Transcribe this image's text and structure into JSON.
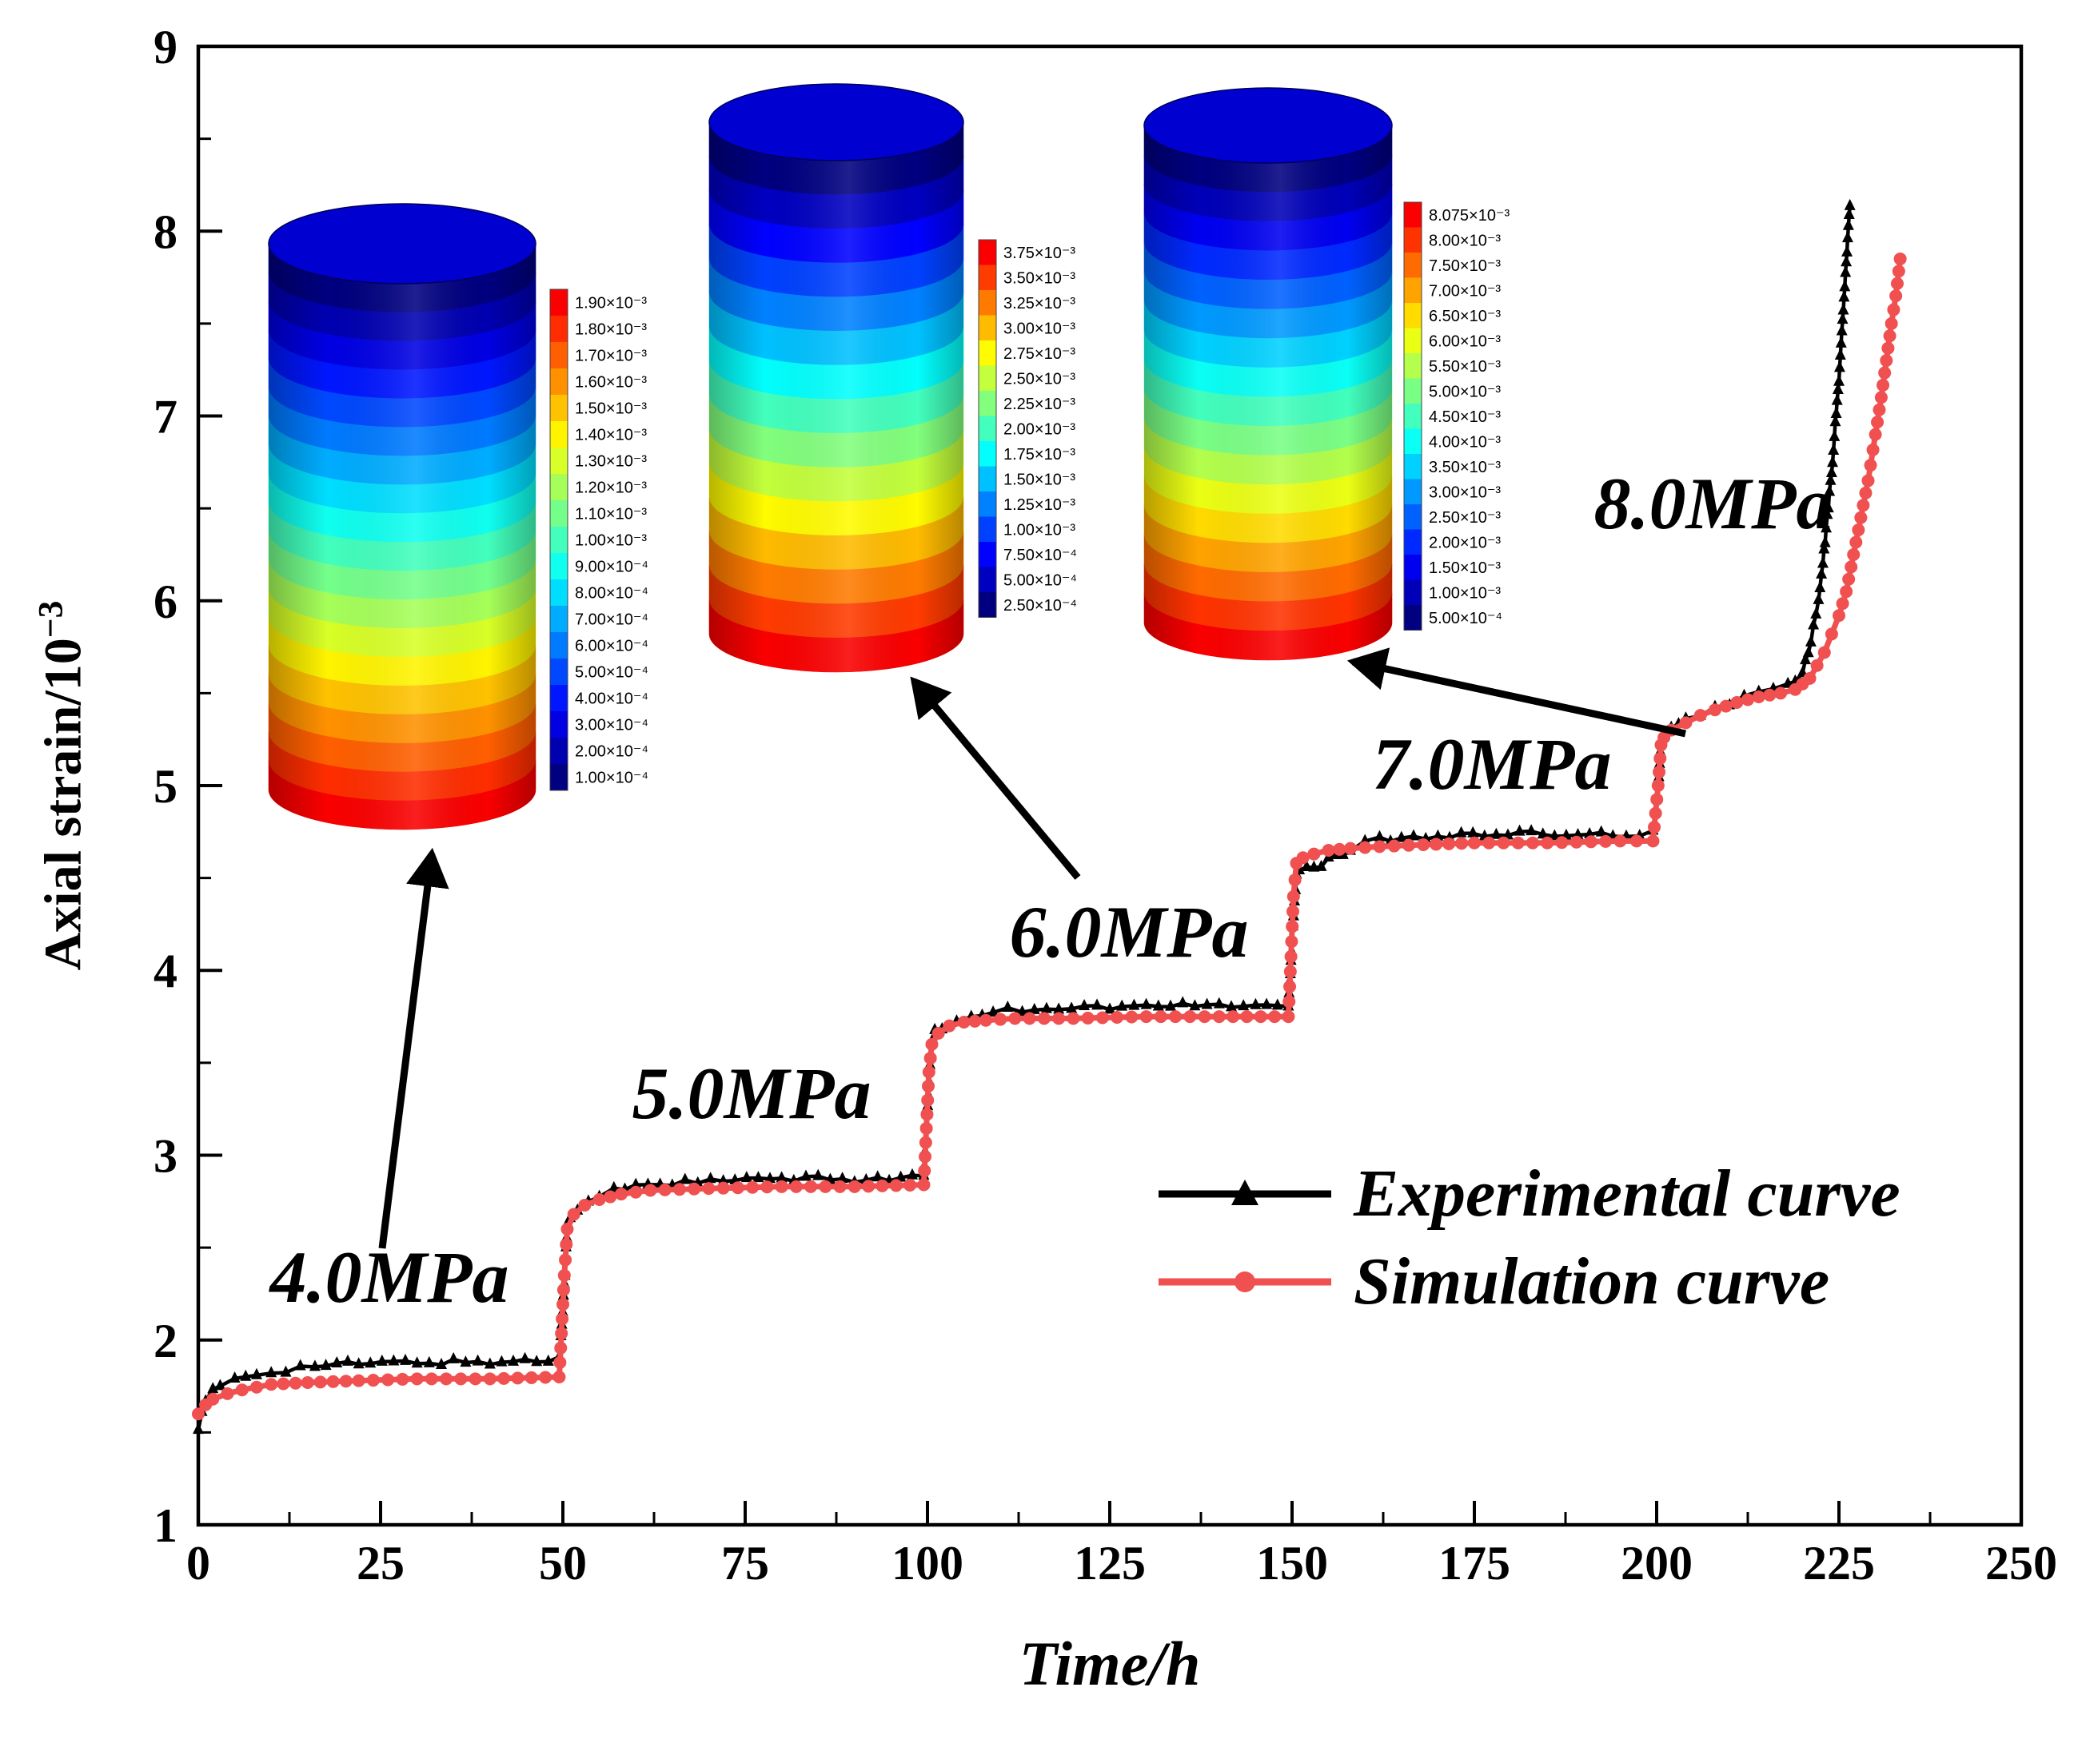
{
  "figure": {
    "background": "#ffffff",
    "frame_color": "#000000"
  },
  "chart_data": {
    "type": "line",
    "title": "",
    "xlabel": "Time/h",
    "ylabel": "Axial strain/10⁻³",
    "ylabel_base": "Axial strain/10",
    "ylabel_sup": "−3",
    "xlim": [
      0,
      250
    ],
    "ylim": [
      1,
      9
    ],
    "xticks": [
      0,
      25,
      50,
      75,
      100,
      125,
      150,
      175,
      200,
      225,
      250
    ],
    "yticks": [
      1,
      2,
      3,
      4,
      5,
      6,
      7,
      8,
      9
    ],
    "grid": false,
    "legend_position": "inside lower right",
    "series": [
      {
        "name": "Experimental curve",
        "color": "#000000",
        "marker": "triangle",
        "points": [
          [
            0,
            1.52
          ],
          [
            0.5,
            1.6
          ],
          [
            1,
            1.66
          ],
          [
            2,
            1.72
          ],
          [
            3,
            1.75
          ],
          [
            5,
            1.79
          ],
          [
            8,
            1.82
          ],
          [
            12,
            1.84
          ],
          [
            16,
            1.86
          ],
          [
            22,
            1.87
          ],
          [
            30,
            1.88
          ],
          [
            40,
            1.88
          ],
          [
            48,
            1.89
          ],
          [
            49.5,
            1.9
          ],
          [
            50.2,
            2.3
          ],
          [
            50.6,
            2.62
          ],
          [
            51,
            2.66
          ],
          [
            52,
            2.7
          ],
          [
            53.5,
            2.74
          ],
          [
            55,
            2.78
          ],
          [
            57,
            2.81
          ],
          [
            60,
            2.84
          ],
          [
            65,
            2.85
          ],
          [
            72,
            2.86
          ],
          [
            80,
            2.87
          ],
          [
            90,
            2.87
          ],
          [
            99.5,
            2.88
          ],
          [
            100.2,
            3.4
          ],
          [
            100.6,
            3.62
          ],
          [
            101,
            3.66
          ],
          [
            102,
            3.69
          ],
          [
            104,
            3.72
          ],
          [
            106,
            3.75
          ],
          [
            109,
            3.78
          ],
          [
            113,
            3.79
          ],
          [
            118,
            3.8
          ],
          [
            125,
            3.8
          ],
          [
            135,
            3.81
          ],
          [
            145,
            3.81
          ],
          [
            149.5,
            3.81
          ],
          [
            150.2,
            4.3
          ],
          [
            150.6,
            4.52
          ],
          [
            151,
            4.55
          ],
          [
            152,
            4.56
          ],
          [
            153,
            4.55
          ],
          [
            154,
            4.57
          ],
          [
            155,
            4.6
          ],
          [
            156,
            4.63
          ],
          [
            157,
            4.61
          ],
          [
            158,
            4.65
          ],
          [
            160,
            4.69
          ],
          [
            162,
            4.71
          ],
          [
            165,
            4.72
          ],
          [
            170,
            4.73
          ],
          [
            178,
            4.73
          ],
          [
            186,
            4.74
          ],
          [
            194,
            4.74
          ],
          [
            199.5,
            4.74
          ],
          [
            200.2,
            5.0
          ],
          [
            200.5,
            5.18
          ],
          [
            201,
            5.26
          ],
          [
            202,
            5.3
          ],
          [
            203,
            5.32
          ],
          [
            204,
            5.35
          ],
          [
            206,
            5.39
          ],
          [
            208,
            5.42
          ],
          [
            210,
            5.45
          ],
          [
            212,
            5.48
          ],
          [
            214,
            5.5
          ],
          [
            216,
            5.52
          ],
          [
            218,
            5.54
          ],
          [
            219,
            5.56
          ],
          [
            220,
            5.62
          ],
          [
            220.8,
            5.72
          ],
          [
            221.5,
            5.85
          ],
          [
            222.2,
            6.0
          ],
          [
            222.8,
            6.2
          ],
          [
            223.4,
            6.45
          ],
          [
            224,
            6.7
          ],
          [
            224.5,
            6.95
          ],
          [
            225,
            7.2
          ],
          [
            225.4,
            7.45
          ],
          [
            225.8,
            7.7
          ],
          [
            226.2,
            7.95
          ],
          [
            226.5,
            8.15
          ]
        ]
      },
      {
        "name": "Simulation curve",
        "color": "#f05050",
        "marker": "circle",
        "points": [
          [
            0,
            1.6
          ],
          [
            1,
            1.65
          ],
          [
            2,
            1.68
          ],
          [
            4,
            1.71
          ],
          [
            6,
            1.73
          ],
          [
            10,
            1.76
          ],
          [
            15,
            1.77
          ],
          [
            22,
            1.78
          ],
          [
            30,
            1.79
          ],
          [
            40,
            1.79
          ],
          [
            49.5,
            1.8
          ],
          [
            50.2,
            2.35
          ],
          [
            50.6,
            2.6
          ],
          [
            51.5,
            2.68
          ],
          [
            53,
            2.73
          ],
          [
            55,
            2.76
          ],
          [
            58,
            2.79
          ],
          [
            62,
            2.81
          ],
          [
            70,
            2.82
          ],
          [
            80,
            2.83
          ],
          [
            90,
            2.83
          ],
          [
            99.5,
            2.84
          ],
          [
            100.2,
            3.45
          ],
          [
            100.6,
            3.6
          ],
          [
            101.5,
            3.66
          ],
          [
            103,
            3.7
          ],
          [
            105,
            3.72
          ],
          [
            108,
            3.73
          ],
          [
            112,
            3.74
          ],
          [
            120,
            3.74
          ],
          [
            130,
            3.75
          ],
          [
            140,
            3.75
          ],
          [
            149.5,
            3.75
          ],
          [
            150.2,
            4.4
          ],
          [
            150.6,
            4.58
          ],
          [
            151.5,
            4.61
          ],
          [
            153,
            4.63
          ],
          [
            155,
            4.65
          ],
          [
            158,
            4.66
          ],
          [
            162,
            4.67
          ],
          [
            168,
            4.68
          ],
          [
            175,
            4.69
          ],
          [
            185,
            4.69
          ],
          [
            195,
            4.7
          ],
          [
            199.5,
            4.7
          ],
          [
            200.2,
            5.0
          ],
          [
            200.6,
            5.22
          ],
          [
            201,
            5.26
          ],
          [
            202,
            5.3
          ],
          [
            204,
            5.34
          ],
          [
            206,
            5.38
          ],
          [
            208,
            5.41
          ],
          [
            211,
            5.45
          ],
          [
            214,
            5.48
          ],
          [
            217,
            5.5
          ],
          [
            219,
            5.52
          ],
          [
            220,
            5.55
          ],
          [
            221,
            5.58
          ],
          [
            222,
            5.65
          ],
          [
            223,
            5.72
          ],
          [
            224,
            5.82
          ],
          [
            225,
            5.92
          ],
          [
            226,
            6.05
          ],
          [
            227,
            6.25
          ],
          [
            228,
            6.45
          ],
          [
            229,
            6.65
          ],
          [
            230,
            6.9
          ],
          [
            230.8,
            7.1
          ],
          [
            231.5,
            7.3
          ],
          [
            232.2,
            7.5
          ],
          [
            232.8,
            7.65
          ],
          [
            233.4,
            7.85
          ]
        ]
      }
    ],
    "annotations": [
      {
        "text": "4.0MPa"
      },
      {
        "text": "5.0MPa"
      },
      {
        "text": "6.0MPa"
      },
      {
        "text": "7.0MPa"
      },
      {
        "text": "8.0MPa"
      }
    ]
  },
  "insets": [
    {
      "name": "contour-cylinder-4mpa",
      "colormap": "jet",
      "legend_values": [
        "1.90×10⁻³",
        "1.80×10⁻³",
        "1.70×10⁻³",
        "1.60×10⁻³",
        "1.50×10⁻³",
        "1.40×10⁻³",
        "1.30×10⁻³",
        "1.20×10⁻³",
        "1.10×10⁻³",
        "1.00×10⁻³",
        "9.00×10⁻⁴",
        "8.00×10⁻⁴",
        "7.00×10⁻⁴",
        "6.00×10⁻⁴",
        "5.00×10⁻⁴",
        "4.00×10⁻⁴",
        "3.00×10⁻⁴",
        "2.00×10⁻⁴",
        "1.00×10⁻⁴"
      ]
    },
    {
      "name": "contour-cylinder-6mpa",
      "colormap": "jet",
      "legend_values": [
        "3.75×10⁻³",
        "3.50×10⁻³",
        "3.25×10⁻³",
        "3.00×10⁻³",
        "2.75×10⁻³",
        "2.50×10⁻³",
        "2.25×10⁻³",
        "2.00×10⁻³",
        "1.75×10⁻³",
        "1.50×10⁻³",
        "1.25×10⁻³",
        "1.00×10⁻³",
        "7.50×10⁻⁴",
        "5.00×10⁻⁴",
        "2.50×10⁻⁴"
      ]
    },
    {
      "name": "contour-cylinder-8mpa",
      "colormap": "jet",
      "legend_values": [
        "8.075×10⁻³",
        "8.00×10⁻³",
        "7.50×10⁻³",
        "7.00×10⁻³",
        "6.50×10⁻³",
        "6.00×10⁻³",
        "5.50×10⁻³",
        "5.00×10⁻³",
        "4.50×10⁻³",
        "4.00×10⁻³",
        "3.50×10⁻³",
        "3.00×10⁻³",
        "2.50×10⁻³",
        "2.00×10⁻³",
        "1.50×10⁻³",
        "1.00×10⁻³",
        "5.00×10⁻⁴"
      ]
    }
  ]
}
